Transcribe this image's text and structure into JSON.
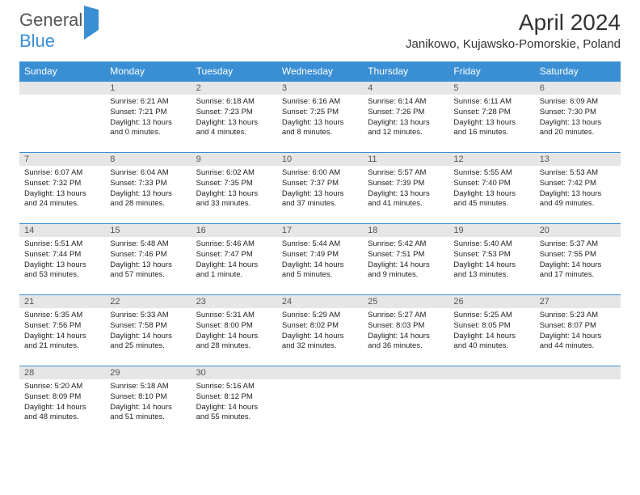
{
  "logo": {
    "text1": "General",
    "text2": "Blue"
  },
  "header": {
    "month_title": "April 2024",
    "location": "Janikowo, Kujawsko-Pomorskie, Poland"
  },
  "colors": {
    "header_bg": "#3a8fd4",
    "daynum_bg": "#e6e6e6",
    "text": "#222222",
    "logo_gray": "#555555",
    "logo_blue": "#3a8fd4"
  },
  "typography": {
    "title_fontsize": 28,
    "location_fontsize": 15,
    "th_fontsize": 12,
    "cell_fontsize": 9.5
  },
  "weekdays": [
    "Sunday",
    "Monday",
    "Tuesday",
    "Wednesday",
    "Thursday",
    "Friday",
    "Saturday"
  ],
  "weeks": [
    [
      null,
      {
        "n": "1",
        "lines": [
          "Sunrise: 6:21 AM",
          "Sunset: 7:21 PM",
          "Daylight: 13 hours and 0 minutes."
        ]
      },
      {
        "n": "2",
        "lines": [
          "Sunrise: 6:18 AM",
          "Sunset: 7:23 PM",
          "Daylight: 13 hours and 4 minutes."
        ]
      },
      {
        "n": "3",
        "lines": [
          "Sunrise: 6:16 AM",
          "Sunset: 7:25 PM",
          "Daylight: 13 hours and 8 minutes."
        ]
      },
      {
        "n": "4",
        "lines": [
          "Sunrise: 6:14 AM",
          "Sunset: 7:26 PM",
          "Daylight: 13 hours and 12 minutes."
        ]
      },
      {
        "n": "5",
        "lines": [
          "Sunrise: 6:11 AM",
          "Sunset: 7:28 PM",
          "Daylight: 13 hours and 16 minutes."
        ]
      },
      {
        "n": "6",
        "lines": [
          "Sunrise: 6:09 AM",
          "Sunset: 7:30 PM",
          "Daylight: 13 hours and 20 minutes."
        ]
      }
    ],
    [
      {
        "n": "7",
        "lines": [
          "Sunrise: 6:07 AM",
          "Sunset: 7:32 PM",
          "Daylight: 13 hours and 24 minutes."
        ]
      },
      {
        "n": "8",
        "lines": [
          "Sunrise: 6:04 AM",
          "Sunset: 7:33 PM",
          "Daylight: 13 hours and 28 minutes."
        ]
      },
      {
        "n": "9",
        "lines": [
          "Sunrise: 6:02 AM",
          "Sunset: 7:35 PM",
          "Daylight: 13 hours and 33 minutes."
        ]
      },
      {
        "n": "10",
        "lines": [
          "Sunrise: 6:00 AM",
          "Sunset: 7:37 PM",
          "Daylight: 13 hours and 37 minutes."
        ]
      },
      {
        "n": "11",
        "lines": [
          "Sunrise: 5:57 AM",
          "Sunset: 7:39 PM",
          "Daylight: 13 hours and 41 minutes."
        ]
      },
      {
        "n": "12",
        "lines": [
          "Sunrise: 5:55 AM",
          "Sunset: 7:40 PM",
          "Daylight: 13 hours and 45 minutes."
        ]
      },
      {
        "n": "13",
        "lines": [
          "Sunrise: 5:53 AM",
          "Sunset: 7:42 PM",
          "Daylight: 13 hours and 49 minutes."
        ]
      }
    ],
    [
      {
        "n": "14",
        "lines": [
          "Sunrise: 5:51 AM",
          "Sunset: 7:44 PM",
          "Daylight: 13 hours and 53 minutes."
        ]
      },
      {
        "n": "15",
        "lines": [
          "Sunrise: 5:48 AM",
          "Sunset: 7:46 PM",
          "Daylight: 13 hours and 57 minutes."
        ]
      },
      {
        "n": "16",
        "lines": [
          "Sunrise: 5:46 AM",
          "Sunset: 7:47 PM",
          "Daylight: 14 hours and 1 minute."
        ]
      },
      {
        "n": "17",
        "lines": [
          "Sunrise: 5:44 AM",
          "Sunset: 7:49 PM",
          "Daylight: 14 hours and 5 minutes."
        ]
      },
      {
        "n": "18",
        "lines": [
          "Sunrise: 5:42 AM",
          "Sunset: 7:51 PM",
          "Daylight: 14 hours and 9 minutes."
        ]
      },
      {
        "n": "19",
        "lines": [
          "Sunrise: 5:40 AM",
          "Sunset: 7:53 PM",
          "Daylight: 14 hours and 13 minutes."
        ]
      },
      {
        "n": "20",
        "lines": [
          "Sunrise: 5:37 AM",
          "Sunset: 7:55 PM",
          "Daylight: 14 hours and 17 minutes."
        ]
      }
    ],
    [
      {
        "n": "21",
        "lines": [
          "Sunrise: 5:35 AM",
          "Sunset: 7:56 PM",
          "Daylight: 14 hours and 21 minutes."
        ]
      },
      {
        "n": "22",
        "lines": [
          "Sunrise: 5:33 AM",
          "Sunset: 7:58 PM",
          "Daylight: 14 hours and 25 minutes."
        ]
      },
      {
        "n": "23",
        "lines": [
          "Sunrise: 5:31 AM",
          "Sunset: 8:00 PM",
          "Daylight: 14 hours and 28 minutes."
        ]
      },
      {
        "n": "24",
        "lines": [
          "Sunrise: 5:29 AM",
          "Sunset: 8:02 PM",
          "Daylight: 14 hours and 32 minutes."
        ]
      },
      {
        "n": "25",
        "lines": [
          "Sunrise: 5:27 AM",
          "Sunset: 8:03 PM",
          "Daylight: 14 hours and 36 minutes."
        ]
      },
      {
        "n": "26",
        "lines": [
          "Sunrise: 5:25 AM",
          "Sunset: 8:05 PM",
          "Daylight: 14 hours and 40 minutes."
        ]
      },
      {
        "n": "27",
        "lines": [
          "Sunrise: 5:23 AM",
          "Sunset: 8:07 PM",
          "Daylight: 14 hours and 44 minutes."
        ]
      }
    ],
    [
      {
        "n": "28",
        "lines": [
          "Sunrise: 5:20 AM",
          "Sunset: 8:09 PM",
          "Daylight: 14 hours and 48 minutes."
        ]
      },
      {
        "n": "29",
        "lines": [
          "Sunrise: 5:18 AM",
          "Sunset: 8:10 PM",
          "Daylight: 14 hours and 51 minutes."
        ]
      },
      {
        "n": "30",
        "lines": [
          "Sunrise: 5:16 AM",
          "Sunset: 8:12 PM",
          "Daylight: 14 hours and 55 minutes."
        ]
      },
      null,
      null,
      null,
      null
    ]
  ]
}
